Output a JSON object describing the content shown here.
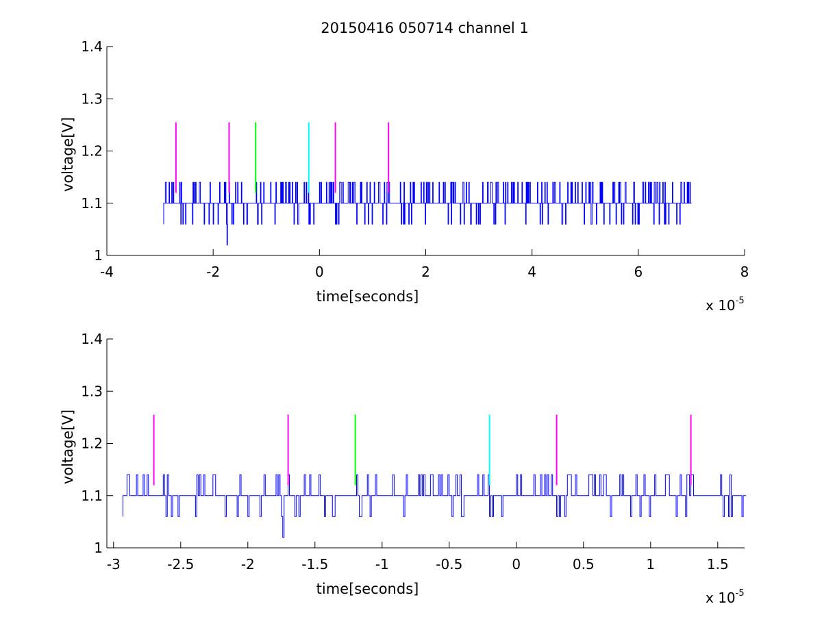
{
  "title": "20150416 050714 channel 1",
  "colors": {
    "trace": "#0000ff",
    "magenta": "#ff00ff",
    "green": "#00ff00",
    "cyan": "#00ffff"
  },
  "chart_data": [
    {
      "type": "line",
      "name": "top-plot",
      "xlabel": "time[seconds]",
      "ylabel": "voltage[V]",
      "xlim": [
        -4e-05,
        8e-05
      ],
      "ylim": [
        1,
        1.4
      ],
      "x_ticks": [
        -4,
        -2,
        0,
        2,
        4,
        6,
        8
      ],
      "x_tick_labels": [
        "-4",
        "-2",
        "0",
        "2",
        "4",
        "6",
        "8"
      ],
      "y_ticks": [
        1,
        1.1,
        1.2,
        1.3,
        1.4
      ],
      "y_tick_labels": [
        "1",
        "1.1",
        "1.2",
        "1.3",
        "1.4"
      ],
      "x_exponent": {
        "base": "x 10",
        "power": "-5"
      },
      "trace": {
        "x_range": [
          -2.93e-05,
          7e-05
        ],
        "baseline": 1.1,
        "levels": [
          1.02,
          1.06,
          1.1,
          1.14
        ],
        "min_point": {
          "x": -1.75e-05,
          "y": 1.02
        }
      },
      "markers": [
        {
          "x": -2.7e-05,
          "y0": 1.12,
          "y1": 1.255,
          "color": "magenta"
        },
        {
          "x": -1.7e-05,
          "y0": 1.12,
          "y1": 1.255,
          "color": "magenta"
        },
        {
          "x": -1.2e-05,
          "y0": 1.12,
          "y1": 1.255,
          "color": "green"
        },
        {
          "x": -2e-06,
          "y0": 1.12,
          "y1": 1.255,
          "color": "cyan"
        },
        {
          "x": 3e-06,
          "y0": 1.12,
          "y1": 1.255,
          "color": "magenta"
        },
        {
          "x": 1.3e-05,
          "y0": 1.12,
          "y1": 1.255,
          "color": "magenta"
        }
      ]
    },
    {
      "type": "line",
      "name": "bottom-plot",
      "xlabel": "time[seconds]",
      "ylabel": "voltage[V]",
      "xlim": [
        -3.05e-05,
        1.7e-05
      ],
      "ylim": [
        1,
        1.4
      ],
      "x_ticks": [
        -3,
        -2.5,
        -2,
        -1.5,
        -1,
        -0.5,
        0,
        0.5,
        1,
        1.5
      ],
      "x_tick_labels": [
        "-3",
        "-2.5",
        "-2",
        "-1.5",
        "-1",
        "-0.5",
        "0",
        "0.5",
        "1",
        "1.5"
      ],
      "y_ticks": [
        1,
        1.1,
        1.2,
        1.3,
        1.4
      ],
      "y_tick_labels": [
        "1",
        "1.1",
        "1.2",
        "1.3",
        "1.4"
      ],
      "x_exponent": {
        "base": "x 10",
        "power": "-5"
      },
      "trace": {
        "x_range": [
          -2.93e-05,
          1.7e-05
        ],
        "baseline": 1.1,
        "levels": [
          1.02,
          1.06,
          1.1,
          1.14
        ],
        "min_point": {
          "x": -1.75e-05,
          "y": 1.02
        }
      },
      "markers": [
        {
          "x": -2.7e-05,
          "y0": 1.12,
          "y1": 1.255,
          "color": "magenta"
        },
        {
          "x": -1.7e-05,
          "y0": 1.12,
          "y1": 1.255,
          "color": "magenta"
        },
        {
          "x": -1.2e-05,
          "y0": 1.12,
          "y1": 1.255,
          "color": "green"
        },
        {
          "x": -2e-06,
          "y0": 1.12,
          "y1": 1.255,
          "color": "cyan"
        },
        {
          "x": 3e-06,
          "y0": 1.12,
          "y1": 1.255,
          "color": "magenta"
        },
        {
          "x": 1.3e-05,
          "y0": 1.12,
          "y1": 1.255,
          "color": "magenta"
        }
      ]
    }
  ]
}
